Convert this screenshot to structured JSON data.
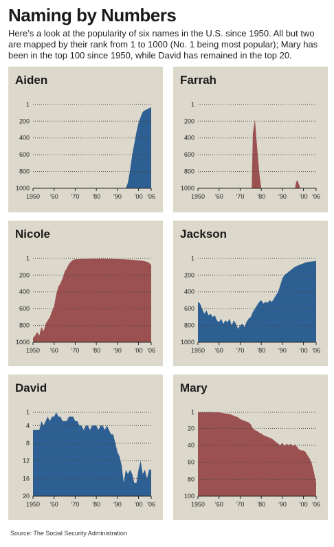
{
  "title": "Naming by Numbers",
  "subtitle": "Here’s a look at the popularity of six names in the U.S. since 1950. All but two are mapped by their rank from 1 to 1000 (No. 1 being most popular); Mary has been in the top 100 since 1950, while David has remained in the top 20.",
  "source": "Source: The Social Security Administration",
  "colors": {
    "blue": "#2d5f92",
    "red": "#9b5150",
    "panel_bg": "#dcd9cc"
  },
  "chart_data": [
    {
      "type": "area",
      "title": "Aiden",
      "color": "blue",
      "ylim": [
        1,
        1000
      ],
      "y_ticks": [
        1,
        200,
        400,
        600,
        800,
        1000
      ],
      "xlim": [
        1950,
        2006
      ],
      "x_ticks": [
        1950,
        1960,
        1970,
        1980,
        1990,
        2000,
        2006
      ],
      "x_tick_labels": [
        "1950",
        "’60",
        "’70",
        "’80",
        "’90",
        "’00",
        "’06"
      ],
      "segments": [
        [
          [
            1994,
            1000
          ],
          [
            1995,
            930
          ],
          [
            1996,
            780
          ],
          [
            1997,
            600
          ],
          [
            1998,
            470
          ],
          [
            1999,
            330
          ],
          [
            2000,
            220
          ],
          [
            2001,
            150
          ],
          [
            2002,
            90
          ],
          [
            2003,
            70
          ],
          [
            2004,
            60
          ],
          [
            2005,
            45
          ],
          [
            2006,
            35
          ]
        ]
      ]
    },
    {
      "type": "area",
      "title": "Farrah",
      "color": "red",
      "ylim": [
        1,
        1000
      ],
      "y_ticks": [
        1,
        200,
        400,
        600,
        800,
        1000
      ],
      "xlim": [
        1950,
        2006
      ],
      "x_ticks": [
        1950,
        1960,
        1970,
        1980,
        1990,
        2000,
        2006
      ],
      "x_tick_labels": [
        "1950",
        "’60",
        "’70",
        "’80",
        "’90",
        "’00",
        "’06"
      ],
      "segments": [
        [
          [
            1975.5,
            1000
          ],
          [
            1976,
            350
          ],
          [
            1977,
            180
          ],
          [
            1978,
            500
          ],
          [
            1979,
            800
          ],
          [
            1980,
            1000
          ]
        ],
        [
          [
            1996,
            1000
          ],
          [
            1996.5,
            930
          ],
          [
            1997,
            900
          ],
          [
            1998,
            960
          ],
          [
            1998.4,
            1000
          ]
        ]
      ]
    },
    {
      "type": "area",
      "title": "Nicole",
      "color": "red",
      "ylim": [
        1,
        1000
      ],
      "y_ticks": [
        1,
        200,
        400,
        600,
        800,
        1000
      ],
      "xlim": [
        1950,
        2006
      ],
      "x_ticks": [
        1950,
        1960,
        1970,
        1980,
        1990,
        2000,
        2006
      ],
      "x_tick_labels": [
        "1950",
        "’60",
        "’70",
        "’80",
        "’90",
        "’00",
        "’06"
      ],
      "segments": [
        [
          [
            1950,
            950
          ],
          [
            1951,
            920
          ],
          [
            1952,
            880
          ],
          [
            1953,
            920
          ],
          [
            1954,
            820
          ],
          [
            1955,
            870
          ],
          [
            1956,
            780
          ],
          [
            1957,
            740
          ],
          [
            1958,
            700
          ],
          [
            1959,
            630
          ],
          [
            1960,
            570
          ],
          [
            1961,
            430
          ],
          [
            1962,
            340
          ],
          [
            1963,
            300
          ],
          [
            1964,
            240
          ],
          [
            1965,
            160
          ],
          [
            1966,
            120
          ],
          [
            1967,
            70
          ],
          [
            1968,
            40
          ],
          [
            1969,
            20
          ],
          [
            1970,
            12
          ],
          [
            1972,
            9
          ],
          [
            1975,
            6
          ],
          [
            1980,
            5
          ],
          [
            1985,
            6
          ],
          [
            1990,
            8
          ],
          [
            1993,
            12
          ],
          [
            1996,
            15
          ],
          [
            1999,
            22
          ],
          [
            2002,
            30
          ],
          [
            2004,
            42
          ],
          [
            2005,
            55
          ],
          [
            2006,
            80
          ]
        ]
      ]
    },
    {
      "type": "area",
      "title": "Jackson",
      "color": "blue",
      "ylim": [
        1,
        1000
      ],
      "y_ticks": [
        1,
        200,
        400,
        600,
        800,
        1000
      ],
      "xlim": [
        1950,
        2006
      ],
      "x_ticks": [
        1950,
        1960,
        1970,
        1980,
        1990,
        2000,
        2006
      ],
      "x_tick_labels": [
        "1950",
        "’60",
        "’70",
        "’80",
        "’90",
        "’00",
        "’06"
      ],
      "segments": [
        [
          [
            1950,
            520
          ],
          [
            1951,
            540
          ],
          [
            1952,
            600
          ],
          [
            1953,
            660
          ],
          [
            1954,
            620
          ],
          [
            1955,
            680
          ],
          [
            1956,
            660
          ],
          [
            1957,
            700
          ],
          [
            1958,
            680
          ],
          [
            1959,
            740
          ],
          [
            1960,
            760
          ],
          [
            1961,
            720
          ],
          [
            1962,
            780
          ],
          [
            1963,
            740
          ],
          [
            1964,
            760
          ],
          [
            1965,
            720
          ],
          [
            1966,
            800
          ],
          [
            1967,
            740
          ],
          [
            1968,
            780
          ],
          [
            1969,
            840
          ],
          [
            1970,
            800
          ],
          [
            1971,
            780
          ],
          [
            1972,
            820
          ],
          [
            1973,
            760
          ],
          [
            1974,
            720
          ],
          [
            1975,
            700
          ],
          [
            1976,
            640
          ],
          [
            1977,
            600
          ],
          [
            1978,
            560
          ],
          [
            1979,
            520
          ],
          [
            1980,
            500
          ],
          [
            1981,
            540
          ],
          [
            1982,
            520
          ],
          [
            1983,
            530
          ],
          [
            1984,
            500
          ],
          [
            1985,
            520
          ],
          [
            1986,
            480
          ],
          [
            1987,
            440
          ],
          [
            1988,
            400
          ],
          [
            1989,
            320
          ],
          [
            1990,
            240
          ],
          [
            1991,
            200
          ],
          [
            1992,
            180
          ],
          [
            1993,
            160
          ],
          [
            1994,
            140
          ],
          [
            1995,
            120
          ],
          [
            1996,
            100
          ],
          [
            1997,
            90
          ],
          [
            1998,
            80
          ],
          [
            1999,
            70
          ],
          [
            2000,
            60
          ],
          [
            2001,
            50
          ],
          [
            2002,
            45
          ],
          [
            2003,
            40
          ],
          [
            2004,
            38
          ],
          [
            2005,
            35
          ],
          [
            2006,
            30
          ]
        ]
      ]
    },
    {
      "type": "area",
      "title": "David",
      "color": "blue",
      "ylim": [
        1,
        20
      ],
      "y_ticks": [
        1,
        4,
        8,
        12,
        16,
        20
      ],
      "xlim": [
        1950,
        2006
      ],
      "x_ticks": [
        1950,
        1960,
        1970,
        1980,
        1990,
        2000,
        2006
      ],
      "x_tick_labels": [
        "1950",
        "’60",
        "’70",
        "’80",
        "’90",
        "’00",
        "’06"
      ],
      "segments": [
        [
          [
            1950,
            5
          ],
          [
            1953,
            5
          ],
          [
            1954,
            3
          ],
          [
            1955,
            4
          ],
          [
            1956,
            3
          ],
          [
            1957,
            2
          ],
          [
            1958,
            3
          ],
          [
            1959,
            2
          ],
          [
            1960,
            2
          ],
          [
            1961,
            1
          ],
          [
            1962,
            2
          ],
          [
            1963,
            2
          ],
          [
            1964,
            3
          ],
          [
            1965,
            3
          ],
          [
            1966,
            3
          ],
          [
            1967,
            2
          ],
          [
            1968,
            2
          ],
          [
            1969,
            2
          ],
          [
            1970,
            3
          ],
          [
            1971,
            3
          ],
          [
            1972,
            4
          ],
          [
            1973,
            4
          ],
          [
            1974,
            5
          ],
          [
            1975,
            4
          ],
          [
            1976,
            4
          ],
          [
            1977,
            5
          ],
          [
            1978,
            4
          ],
          [
            1979,
            4
          ],
          [
            1980,
            4
          ],
          [
            1981,
            5
          ],
          [
            1982,
            4
          ],
          [
            1983,
            4
          ],
          [
            1984,
            5
          ],
          [
            1985,
            4
          ],
          [
            1986,
            5
          ],
          [
            1987,
            6
          ],
          [
            1988,
            6
          ],
          [
            1989,
            8
          ],
          [
            1990,
            10
          ],
          [
            1991,
            11
          ],
          [
            1992,
            13
          ],
          [
            1993,
            17
          ],
          [
            1994,
            14
          ],
          [
            1995,
            15
          ],
          [
            1996,
            14
          ],
          [
            1997,
            15
          ],
          [
            1998,
            17
          ],
          [
            1999,
            17
          ],
          [
            2000,
            14
          ],
          [
            2001,
            12
          ],
          [
            2002,
            15
          ],
          [
            2003,
            14
          ],
          [
            2004,
            16
          ],
          [
            2005,
            14
          ],
          [
            2006,
            14
          ]
        ]
      ]
    },
    {
      "type": "area",
      "title": "Mary",
      "color": "red",
      "ylim": [
        1,
        100
      ],
      "y_ticks": [
        1,
        20,
        40,
        60,
        80,
        100
      ],
      "xlim": [
        1950,
        2006
      ],
      "x_ticks": [
        1950,
        1960,
        1970,
        1980,
        1990,
        2000,
        2006
      ],
      "x_tick_labels": [
        "1950",
        "’60",
        "’70",
        "’80",
        "’90",
        "’00",
        "’06"
      ],
      "segments": [
        [
          [
            1950,
            1
          ],
          [
            1955,
            1
          ],
          [
            1960,
            1
          ],
          [
            1962,
            2
          ],
          [
            1965,
            3
          ],
          [
            1967,
            5
          ],
          [
            1969,
            7
          ],
          [
            1970,
            9
          ],
          [
            1972,
            11
          ],
          [
            1974,
            13
          ],
          [
            1975,
            15
          ],
          [
            1976,
            20
          ],
          [
            1977,
            22
          ],
          [
            1978,
            23
          ],
          [
            1979,
            25
          ],
          [
            1980,
            26
          ],
          [
            1981,
            28
          ],
          [
            1983,
            30
          ],
          [
            1984,
            31
          ],
          [
            1985,
            32
          ],
          [
            1986,
            34
          ],
          [
            1987,
            36
          ],
          [
            1988,
            38
          ],
          [
            1989,
            40
          ],
          [
            1990,
            37
          ],
          [
            1991,
            41
          ],
          [
            1992,
            38
          ],
          [
            1993,
            40
          ],
          [
            1994,
            38
          ],
          [
            1995,
            41
          ],
          [
            1996,
            39
          ],
          [
            1997,
            42
          ],
          [
            1998,
            45
          ],
          [
            1999,
            46
          ],
          [
            2000,
            46
          ],
          [
            2001,
            48
          ],
          [
            2002,
            52
          ],
          [
            2003,
            56
          ],
          [
            2004,
            62
          ],
          [
            2005,
            72
          ],
          [
            2006,
            84
          ]
        ]
      ]
    }
  ]
}
